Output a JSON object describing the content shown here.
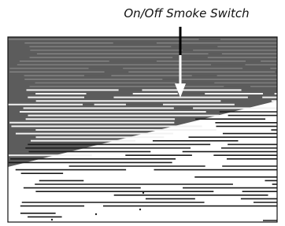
{
  "annotation": {
    "label": "On/Off Smoke Switch"
  }
}
